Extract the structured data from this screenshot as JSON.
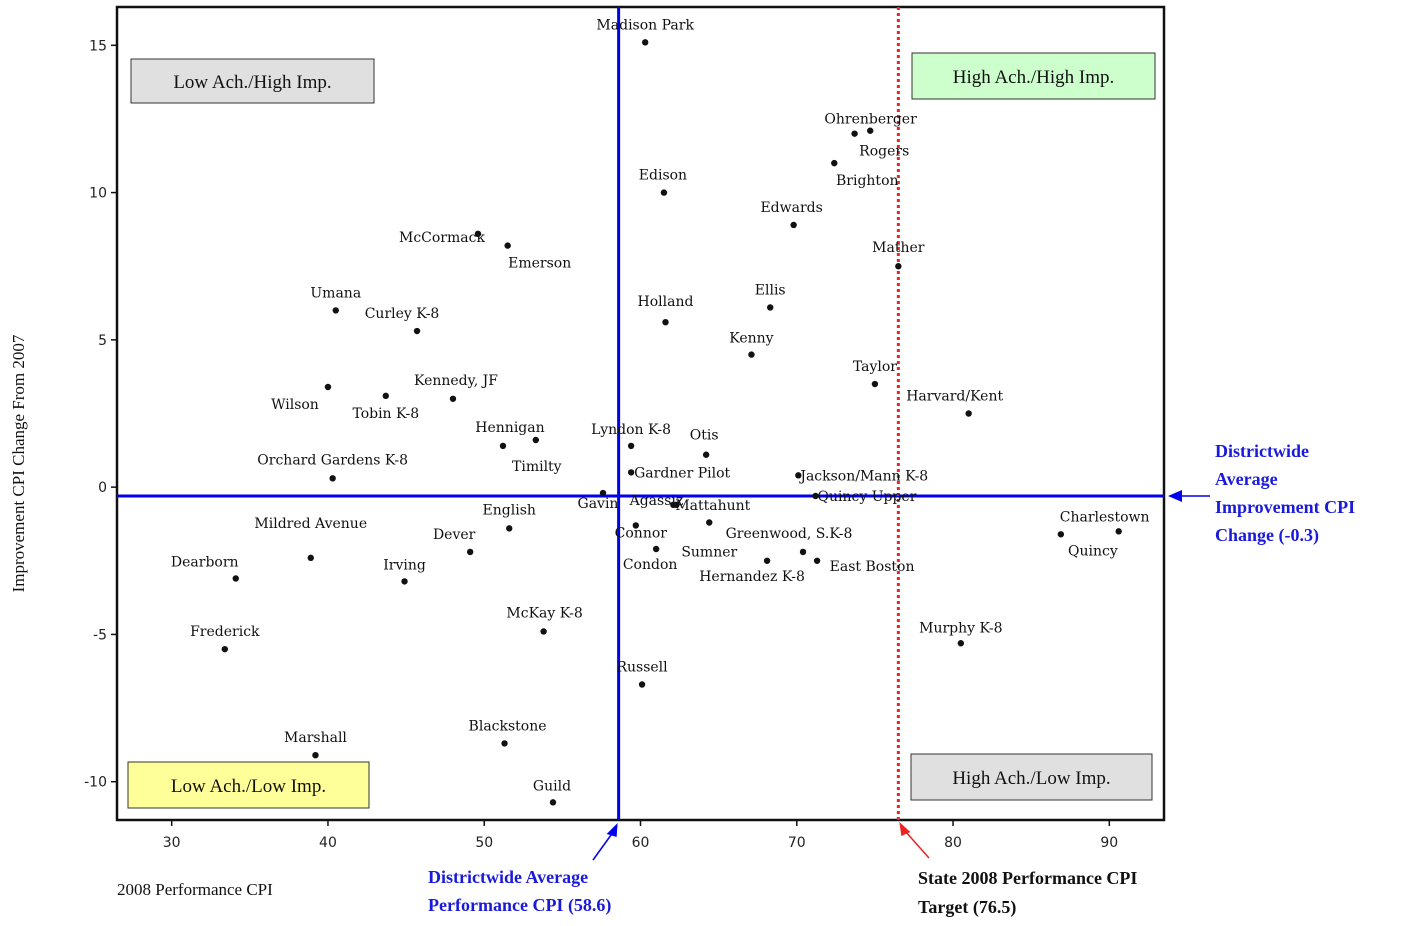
{
  "chart_data": {
    "type": "scatter",
    "xlabel": "2008 Performance CPI",
    "ylabel": "Improvement CPI Change From 2007",
    "xlim": [
      26.5,
      93.5
    ],
    "ylim": [
      -11.3,
      16.3
    ],
    "x_ticks": [
      30,
      40,
      50,
      60,
      70,
      80,
      90
    ],
    "y_ticks": [
      15,
      10,
      5,
      0,
      -5,
      -10
    ],
    "points": [
      {
        "name": "Madison Park",
        "x": 60.3,
        "y": 15.1
      },
      {
        "name": "Ohrenberger",
        "x": 73.7,
        "y": 12.0
      },
      {
        "name": "Rogers",
        "x": 74.7,
        "y": 12.1
      },
      {
        "name": "Brighton",
        "x": 72.4,
        "y": 11.0
      },
      {
        "name": "Edison",
        "x": 61.5,
        "y": 10.0
      },
      {
        "name": "Edwards",
        "x": 69.8,
        "y": 8.9
      },
      {
        "name": "McCormack",
        "x": 49.6,
        "y": 8.6
      },
      {
        "name": "Emerson",
        "x": 51.5,
        "y": 8.2
      },
      {
        "name": "Mather",
        "x": 76.5,
        "y": 7.5
      },
      {
        "name": "Ellis",
        "x": 68.3,
        "y": 6.1
      },
      {
        "name": "Umana",
        "x": 40.5,
        "y": 6.0
      },
      {
        "name": "Holland",
        "x": 61.6,
        "y": 5.6
      },
      {
        "name": "Curley K-8",
        "x": 45.7,
        "y": 5.3
      },
      {
        "name": "Kenny",
        "x": 67.1,
        "y": 4.5
      },
      {
        "name": "Taylor",
        "x": 75.0,
        "y": 3.5
      },
      {
        "name": "Wilson",
        "x": 40.0,
        "y": 3.4
      },
      {
        "name": "Tobin K-8",
        "x": 43.7,
        "y": 3.1
      },
      {
        "name": "Kennedy, JF",
        "x": 48.0,
        "y": 3.0
      },
      {
        "name": "Harvard/Kent",
        "x": 81.0,
        "y": 2.5
      },
      {
        "name": "Timilty",
        "x": 53.3,
        "y": 1.6
      },
      {
        "name": "Hennigan",
        "x": 51.2,
        "y": 1.4
      },
      {
        "name": "Lyndon K-8",
        "x": 59.4,
        "y": 1.4
      },
      {
        "name": "Otis",
        "x": 64.2,
        "y": 1.1
      },
      {
        "name": "Gardner Pilot",
        "x": 59.4,
        "y": 0.5
      },
      {
        "name": "Jackson/Mann K-8",
        "x": 70.1,
        "y": 0.4
      },
      {
        "name": "Orchard Gardens K-8",
        "x": 40.3,
        "y": 0.3
      },
      {
        "name": "Gavin",
        "x": 57.6,
        "y": -0.2
      },
      {
        "name": "Quincy Upper",
        "x": 71.2,
        "y": -0.3
      },
      {
        "name": "Agassiz",
        "x": 62.3,
        "y": -0.6
      },
      {
        "name": "Mattahunt",
        "x": 62.1,
        "y": -0.6
      },
      {
        "name": "Sumner",
        "x": 64.4,
        "y": -1.2
      },
      {
        "name": "English",
        "x": 51.6,
        "y": -1.4
      },
      {
        "name": "Connor",
        "x": 59.7,
        "y": -1.3
      },
      {
        "name": "Charlestown",
        "x": 90.6,
        "y": -1.5
      },
      {
        "name": "Quincy",
        "x": 86.9,
        "y": -1.6
      },
      {
        "name": "Condon",
        "x": 61.0,
        "y": -2.1
      },
      {
        "name": "Dever",
        "x": 49.1,
        "y": -2.2
      },
      {
        "name": "Greenwood, S.K-8",
        "x": 70.4,
        "y": -2.2
      },
      {
        "name": "Mildred Avenue",
        "x": 38.9,
        "y": -2.4
      },
      {
        "name": "Hernandez K-8",
        "x": 68.1,
        "y": -2.5
      },
      {
        "name": "East Boston",
        "x": 71.3,
        "y": -2.5
      },
      {
        "name": "Dearborn",
        "x": 34.1,
        "y": -3.1
      },
      {
        "name": "Irving",
        "x": 44.9,
        "y": -3.2
      },
      {
        "name": "McKay K-8",
        "x": 53.8,
        "y": -4.9
      },
      {
        "name": "Murphy K-8",
        "x": 80.5,
        "y": -5.3
      },
      {
        "name": "Frederick",
        "x": 33.4,
        "y": -5.5
      },
      {
        "name": "Russell",
        "x": 60.1,
        "y": -6.7
      },
      {
        "name": "Blackstone",
        "x": 51.3,
        "y": -8.7
      },
      {
        "name": "Marshall",
        "x": 39.2,
        "y": -9.1
      },
      {
        "name": "Guild",
        "x": 54.4,
        "y": -10.7
      }
    ],
    "reference_lines": [
      {
        "axis": "x",
        "value": 58.6,
        "color": "#0000ee",
        "style": "solid"
      },
      {
        "axis": "y",
        "value": -0.3,
        "color": "#0000ee",
        "style": "solid"
      },
      {
        "axis": "x",
        "value": 76.5,
        "color": "#ee2222",
        "style": "dotted"
      }
    ],
    "quadrant_labels": [
      {
        "text": "Low Ach./High Imp.",
        "fill": "#e0e0e0",
        "corner": "top-left"
      },
      {
        "text": "High Ach./High Imp.",
        "fill": "#ccffcc",
        "corner": "top-right"
      },
      {
        "text": "Low Ach./Low Imp.",
        "fill": "#ffff99",
        "corner": "bottom-left"
      },
      {
        "text": "High Ach./Low Imp.",
        "fill": "#e0e0e0",
        "corner": "bottom-right"
      }
    ],
    "annotations": {
      "district_perf": [
        "Districtwide Average",
        "Performance CPI (58.6)"
      ],
      "district_imp": [
        "Districtwide",
        "Average",
        "Improvement CPI",
        "Change (-0.3)"
      ],
      "state_target": [
        "State 2008 Performance CPI",
        "Target (76.5)"
      ]
    },
    "colors": {
      "blue": "#0000ee",
      "red": "#ee2222",
      "navy_text": "#1a1adb"
    },
    "grid": false,
    "legend": "none"
  }
}
